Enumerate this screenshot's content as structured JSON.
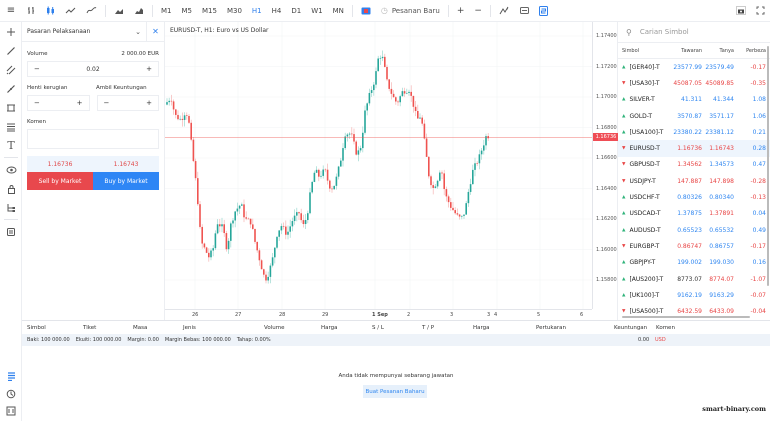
{
  "toolbar": {
    "menu_icon": "≡",
    "chart_types": [
      "bar-chart-icon",
      "candle-chart-icon",
      "line-chart-icon",
      "smooth-line-icon"
    ],
    "extra_types": [
      "area-icon",
      "mountain-icon"
    ],
    "timeframes": [
      "M1",
      "M5",
      "M15",
      "M30",
      "H1",
      "H4",
      "D1",
      "W1",
      "MN"
    ],
    "active_timeframe": "H1",
    "new_order_label": "Pesanan Baru",
    "zoom_in": "+",
    "zoom_out": "−"
  },
  "left_tools": [
    "crosshair-icon",
    "trendline-icon",
    "channel-icon",
    "ray-icon",
    "rectangle-icon",
    "fibonacci-icon",
    "text-icon",
    "eye-icon",
    "lock-icon",
    "tree-icon",
    "layers-icon"
  ],
  "order_panel": {
    "title": "Pasaran Pelaksanaan",
    "volume_label": "Volume",
    "volume_value_eur": "2 000.00 EUR",
    "volume": "0.02",
    "stop_loss_label": "Henti kerugian",
    "take_profit_label": "Ambil Keuntungan",
    "comment_label": "Komen",
    "sell_price": "1.16736",
    "buy_price": "1.16743",
    "sell_label": "Sell by Market",
    "buy_label": "Buy by Market",
    "minus": "−",
    "plus": "+"
  },
  "chart": {
    "title": "EURUSD-T, H1: Euro vs US Dollar",
    "current_price": "1.16736",
    "price_labels": [
      "1.17400",
      "1.17200",
      "1.17000",
      "1.16800",
      "1.16600",
      "1.16400",
      "1.16200",
      "1.16000",
      "1.15800"
    ],
    "time_labels": [
      "26",
      "27",
      "28",
      "29",
      "1 Sep",
      "2",
      "3",
      "3",
      "4",
      "5",
      "6"
    ],
    "colors": {
      "up": "#26a69a",
      "down": "#ef5350",
      "price_line": "#ef5350"
    }
  },
  "chart_data": {
    "type": "candlestick",
    "title": "EURUSD-T, H1: Euro vs US Dollar",
    "symbol": "EURUSD-T",
    "timeframe": "H1",
    "x_ticks": [
      "26",
      "27",
      "28",
      "29",
      "1 Sep",
      "2",
      "3",
      "4",
      "5",
      "6"
    ],
    "y_ticks": [
      1.158,
      1.16,
      1.162,
      1.164,
      1.166,
      1.168,
      1.17,
      1.172,
      1.174
    ],
    "ylim": [
      1.1568,
      1.1748
    ],
    "current_price": 1.16736,
    "approx_close_path": [
      {
        "x": "26",
        "price": 1.169
      },
      {
        "x": "26",
        "price": 1.168
      },
      {
        "x": "26",
        "price": 1.164
      },
      {
        "x": "27",
        "price": 1.1618
      },
      {
        "x": "27",
        "price": 1.164
      },
      {
        "x": "27",
        "price": 1.1632
      },
      {
        "x": "28",
        "price": 1.1605
      },
      {
        "x": "28",
        "price": 1.1585
      },
      {
        "x": "28",
        "price": 1.1625
      },
      {
        "x": "29",
        "price": 1.164
      },
      {
        "x": "29",
        "price": 1.1662
      },
      {
        "x": "29",
        "price": 1.169
      },
      {
        "x": "1 Sep",
        "price": 1.1705
      },
      {
        "x": "1 Sep",
        "price": 1.1725
      },
      {
        "x": "1 Sep",
        "price": 1.17
      },
      {
        "x": "2",
        "price": 1.1705
      },
      {
        "x": "2",
        "price": 1.169
      },
      {
        "x": "2",
        "price": 1.1645
      },
      {
        "x": "3",
        "price": 1.163
      },
      {
        "x": "3",
        "price": 1.1618
      },
      {
        "x": "3",
        "price": 1.165
      },
      {
        "x": "3",
        "price": 1.16736
      }
    ]
  },
  "watchlist": {
    "search_placeholder": "Carian Simbol",
    "headers": [
      "Simbol",
      "Tawaran",
      "Tanya",
      "Perbeza"
    ],
    "rows": [
      {
        "symbol": "[GER40]-T",
        "bid": "23577.99",
        "ask": "23579.49",
        "change": "-0.17",
        "dir": "up",
        "bidc": "blue",
        "askc": "blue",
        "chc": "red"
      },
      {
        "symbol": "[USA30]-T",
        "bid": "45087.05",
        "ask": "45089.85",
        "change": "-0.35",
        "dir": "dn",
        "bidc": "red",
        "askc": "red",
        "chc": "red"
      },
      {
        "symbol": "SILVER-T",
        "bid": "41.311",
        "ask": "41.344",
        "change": "1.08",
        "dir": "up",
        "bidc": "blue",
        "askc": "blue",
        "chc": "blue"
      },
      {
        "symbol": "GOLD-T",
        "bid": "3570.87",
        "ask": "3571.17",
        "change": "1.06",
        "dir": "up",
        "bidc": "blue",
        "askc": "blue",
        "chc": "blue"
      },
      {
        "symbol": "[USA100]-T",
        "bid": "23380.22",
        "ask": "23381.12",
        "change": "0.21",
        "dir": "up",
        "bidc": "blue",
        "askc": "blue",
        "chc": "blue"
      },
      {
        "symbol": "EURUSD-T",
        "bid": "1.16736",
        "ask": "1.16743",
        "change": "0.28",
        "dir": "dn",
        "bidc": "red",
        "askc": "red",
        "chc": "blue"
      },
      {
        "symbol": "GBPUSD-T",
        "bid": "1.34562",
        "ask": "1.34573",
        "change": "0.47",
        "dir": "dn",
        "bidc": "red",
        "askc": "blue",
        "chc": "blue"
      },
      {
        "symbol": "USDJPY-T",
        "bid": "147.887",
        "ask": "147.898",
        "change": "-0.28",
        "dir": "dn",
        "bidc": "red",
        "askc": "red",
        "chc": "red"
      },
      {
        "symbol": "USDCHF-T",
        "bid": "0.80326",
        "ask": "0.80340",
        "change": "-0.13",
        "dir": "up",
        "bidc": "blue",
        "askc": "blue",
        "chc": "red"
      },
      {
        "symbol": "USDCAD-T",
        "bid": "1.37875",
        "ask": "1.37891",
        "change": "0.04",
        "dir": "up",
        "bidc": "blue",
        "askc": "red",
        "chc": "blue"
      },
      {
        "symbol": "AUDUSD-T",
        "bid": "0.65523",
        "ask": "0.65532",
        "change": "0.49",
        "dir": "up",
        "bidc": "blue",
        "askc": "blue",
        "chc": "blue"
      },
      {
        "symbol": "EURGBP-T",
        "bid": "0.86747",
        "ask": "0.86757",
        "change": "-0.17",
        "dir": "dn",
        "bidc": "red",
        "askc": "blue",
        "chc": "red"
      },
      {
        "symbol": "GBPJPY-T",
        "bid": "199.002",
        "ask": "199.030",
        "change": "0.16",
        "dir": "up",
        "bidc": "blue",
        "askc": "blue",
        "chc": "blue"
      },
      {
        "symbol": "[AUS200]-T",
        "bid": "8773.07",
        "ask": "8774.07",
        "change": "-1.07",
        "dir": "up",
        "bidc": "blk",
        "askc": "red",
        "chc": "red"
      },
      {
        "symbol": "[UK100]-T",
        "bid": "9162.19",
        "ask": "9163.29",
        "change": "-0.07",
        "dir": "up",
        "bidc": "blue",
        "askc": "blue",
        "chc": "red"
      },
      {
        "symbol": "[USA500]-T",
        "bid": "6432.59",
        "ask": "6433.09",
        "change": "-0.04",
        "dir": "dn",
        "bidc": "red",
        "askc": "red",
        "chc": "red"
      }
    ]
  },
  "positions": {
    "headers": [
      "Simbol",
      "Tiket",
      "Masa",
      "Jenis",
      "Volume",
      "Harga",
      "S / L",
      "T / P",
      "Harga",
      "Pertukaran",
      "Keuntungan",
      "Komen"
    ],
    "balance": "Baki: 100 000.00",
    "equity": "Ekuiti: 100 000.00",
    "margin": "Margin: 0.00",
    "free_margin": "Margin Bebas: 100 000.00",
    "level": "Tahap: 0.00%",
    "profit": "0.00",
    "currency": "USD",
    "empty_text": "Anda tidak mempunyai sebarang jawatan",
    "new_order_button": "Buat Pesanan Baharu"
  },
  "watermark": "smart-binary.com"
}
